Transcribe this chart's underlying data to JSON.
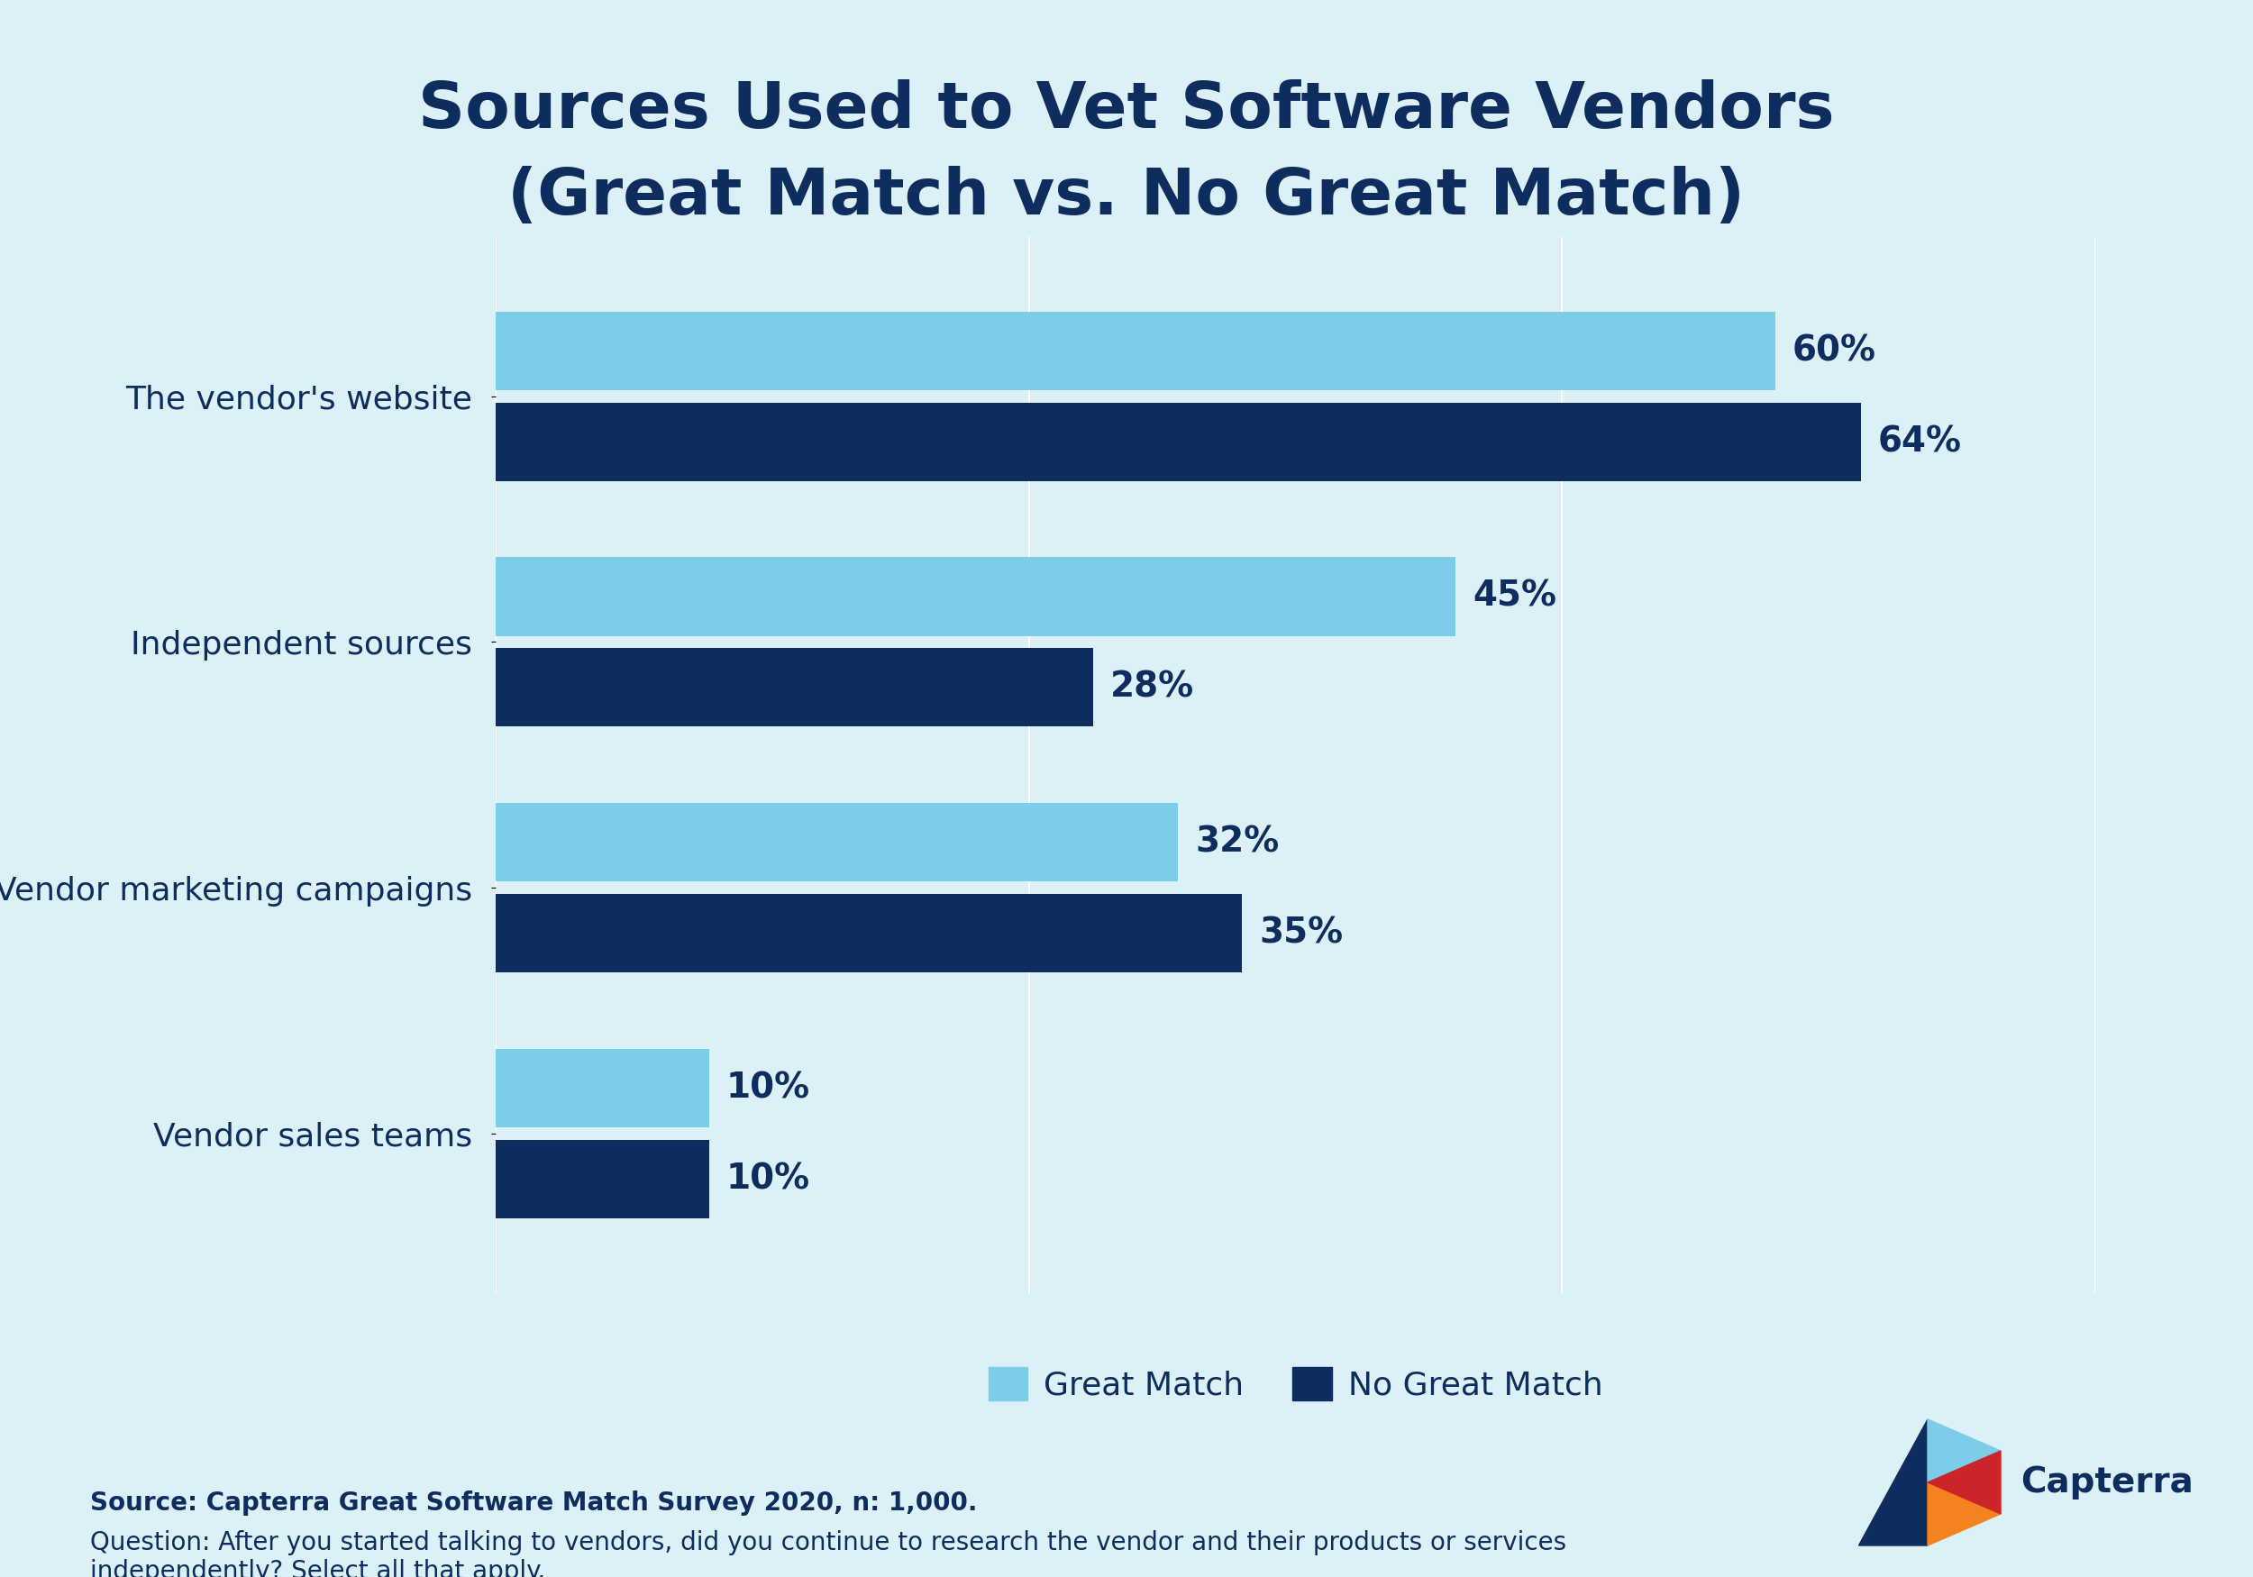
{
  "title_line1": "Sources Used to Vet Software Vendors",
  "title_line2": "(Great Match vs. No Great Match)",
  "categories": [
    "The vendor's website",
    "Independent sources",
    "Vendor marketing campaigns",
    "Vendor sales teams"
  ],
  "great_match": [
    60,
    45,
    32,
    10
  ],
  "no_great_match": [
    64,
    28,
    35,
    10
  ],
  "color_great_match": "#7BCDE8",
  "color_no_great_match": "#0D2D5E",
  "background_color": "#DCF0F8",
  "title_color": "#0D2D5E",
  "label_color": "#0D2D5E",
  "bar_label_color_gm": "#0D2D5E",
  "bar_label_color_ngm": "#7BCDE8",
  "grid_color": "#FFFFFF",
  "source_bold": "Source: Capterra Great Software Match Survey 2020, n: 1,000.",
  "source_normal": "Question: After you started talking to vendors, did you continue to research the vendor and their products or services\nindependently? Select all that apply.",
  "legend_great_match": "Great Match",
  "legend_no_great_match": "No Great Match",
  "xlim": [
    0,
    75
  ],
  "bar_height": 0.32,
  "bar_gap": 0.05
}
